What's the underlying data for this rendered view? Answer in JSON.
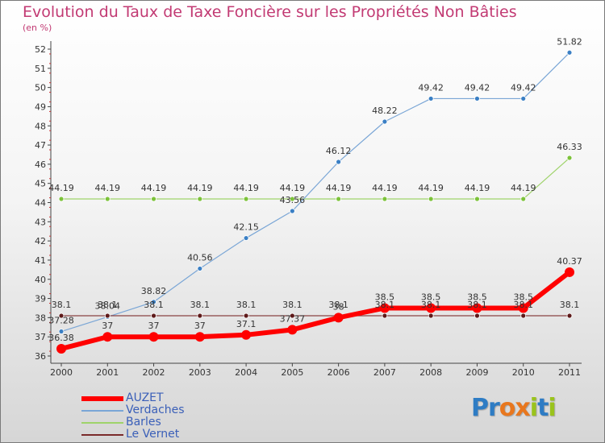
{
  "title": "Evolution du Taux de Taxe Foncière sur les Propriétés Non Bâties",
  "unit": "(en %)",
  "logo": {
    "letters": [
      "P",
      "r",
      "o",
      "x",
      "i",
      "t",
      "i"
    ],
    "colors": [
      "#2e7cc4",
      "#2e7cc4",
      "#e8771e",
      "#e8771e",
      "#9ac31c",
      "#2e7cc4",
      "#9ac31c"
    ]
  },
  "chart_data": {
    "type": "line",
    "title": "Evolution du Taux de Taxe Foncière sur les Propriétés Non Bâties",
    "ylabel": "(en %)",
    "x": [
      "2000",
      "2001",
      "2002",
      "2003",
      "2004",
      "2005",
      "2006",
      "2007",
      "2008",
      "2009",
      "2010",
      "2011"
    ],
    "ylim": [
      36,
      52
    ],
    "yticks": [
      "36",
      "37",
      "38",
      "39",
      "40",
      "41",
      "42",
      "43",
      "44",
      "45",
      "46",
      "47",
      "48",
      "49",
      "50",
      "51",
      "52"
    ],
    "grid": false,
    "legend_position": "bottom-left",
    "series": [
      {
        "name": "AUZET",
        "color": "#ff0000",
        "values": [
          36.38,
          37,
          37,
          37,
          37.1,
          37.37,
          38,
          38.5,
          38.5,
          38.5,
          38.5,
          40.37
        ],
        "labels": [
          "36.38",
          "37",
          "37",
          "37",
          "37.1",
          "37.37",
          "38",
          "38.5",
          "38.5",
          "38.5",
          "38.5",
          "40.37"
        ]
      },
      {
        "name": "Verdaches",
        "color": "#7aa6d6",
        "values": [
          37.28,
          38.04,
          38.82,
          40.56,
          42.15,
          43.56,
          46.12,
          48.22,
          49.42,
          49.42,
          49.42,
          51.82
        ],
        "labels": [
          "37.28",
          "38.04",
          "38.82",
          "40.56",
          "42.15",
          "43.56",
          "46.12",
          "48.22",
          "49.42",
          "49.42",
          "49.42",
          "51.82"
        ]
      },
      {
        "name": "Barles",
        "color": "#9fd36a",
        "values": [
          44.19,
          44.19,
          44.19,
          44.19,
          44.19,
          44.19,
          44.19,
          44.19,
          44.19,
          44.19,
          44.19,
          46.33
        ],
        "labels": [
          "44.19",
          "44.19",
          "44.19",
          "44.19",
          "44.19",
          "44.19",
          "44.19",
          "44.19",
          "44.19",
          "44.19",
          "44.19",
          "46.33"
        ]
      },
      {
        "name": "Le Vernet",
        "color": "#7a2a2a",
        "values": [
          38.1,
          38.1,
          38.1,
          38.1,
          38.1,
          38.1,
          38.1,
          38.1,
          38.1,
          38.1,
          38.1,
          38.1
        ],
        "labels": [
          "38.1",
          "38.1",
          "38.1",
          "38.1",
          "38.1",
          "38.1",
          "38.1",
          "38.1",
          "38.1",
          "38.1",
          "38.1",
          "38.1"
        ]
      }
    ]
  }
}
